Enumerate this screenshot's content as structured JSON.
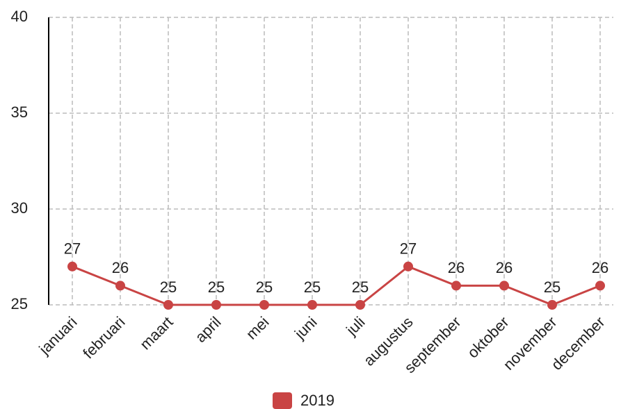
{
  "chart_data": {
    "type": "line",
    "categories": [
      "januari",
      "februari",
      "maart",
      "april",
      "mei",
      "juni",
      "juli",
      "augustus",
      "september",
      "oktober",
      "november",
      "december"
    ],
    "series": [
      {
        "name": "2019",
        "color": "#c94444",
        "values": [
          27,
          26,
          25,
          25,
          25,
          25,
          25,
          27,
          26,
          26,
          25,
          26
        ]
      }
    ],
    "ylim": [
      25,
      40
    ],
    "yticks": [
      25,
      30,
      35,
      40
    ],
    "grid": true,
    "legend": "bottom"
  }
}
